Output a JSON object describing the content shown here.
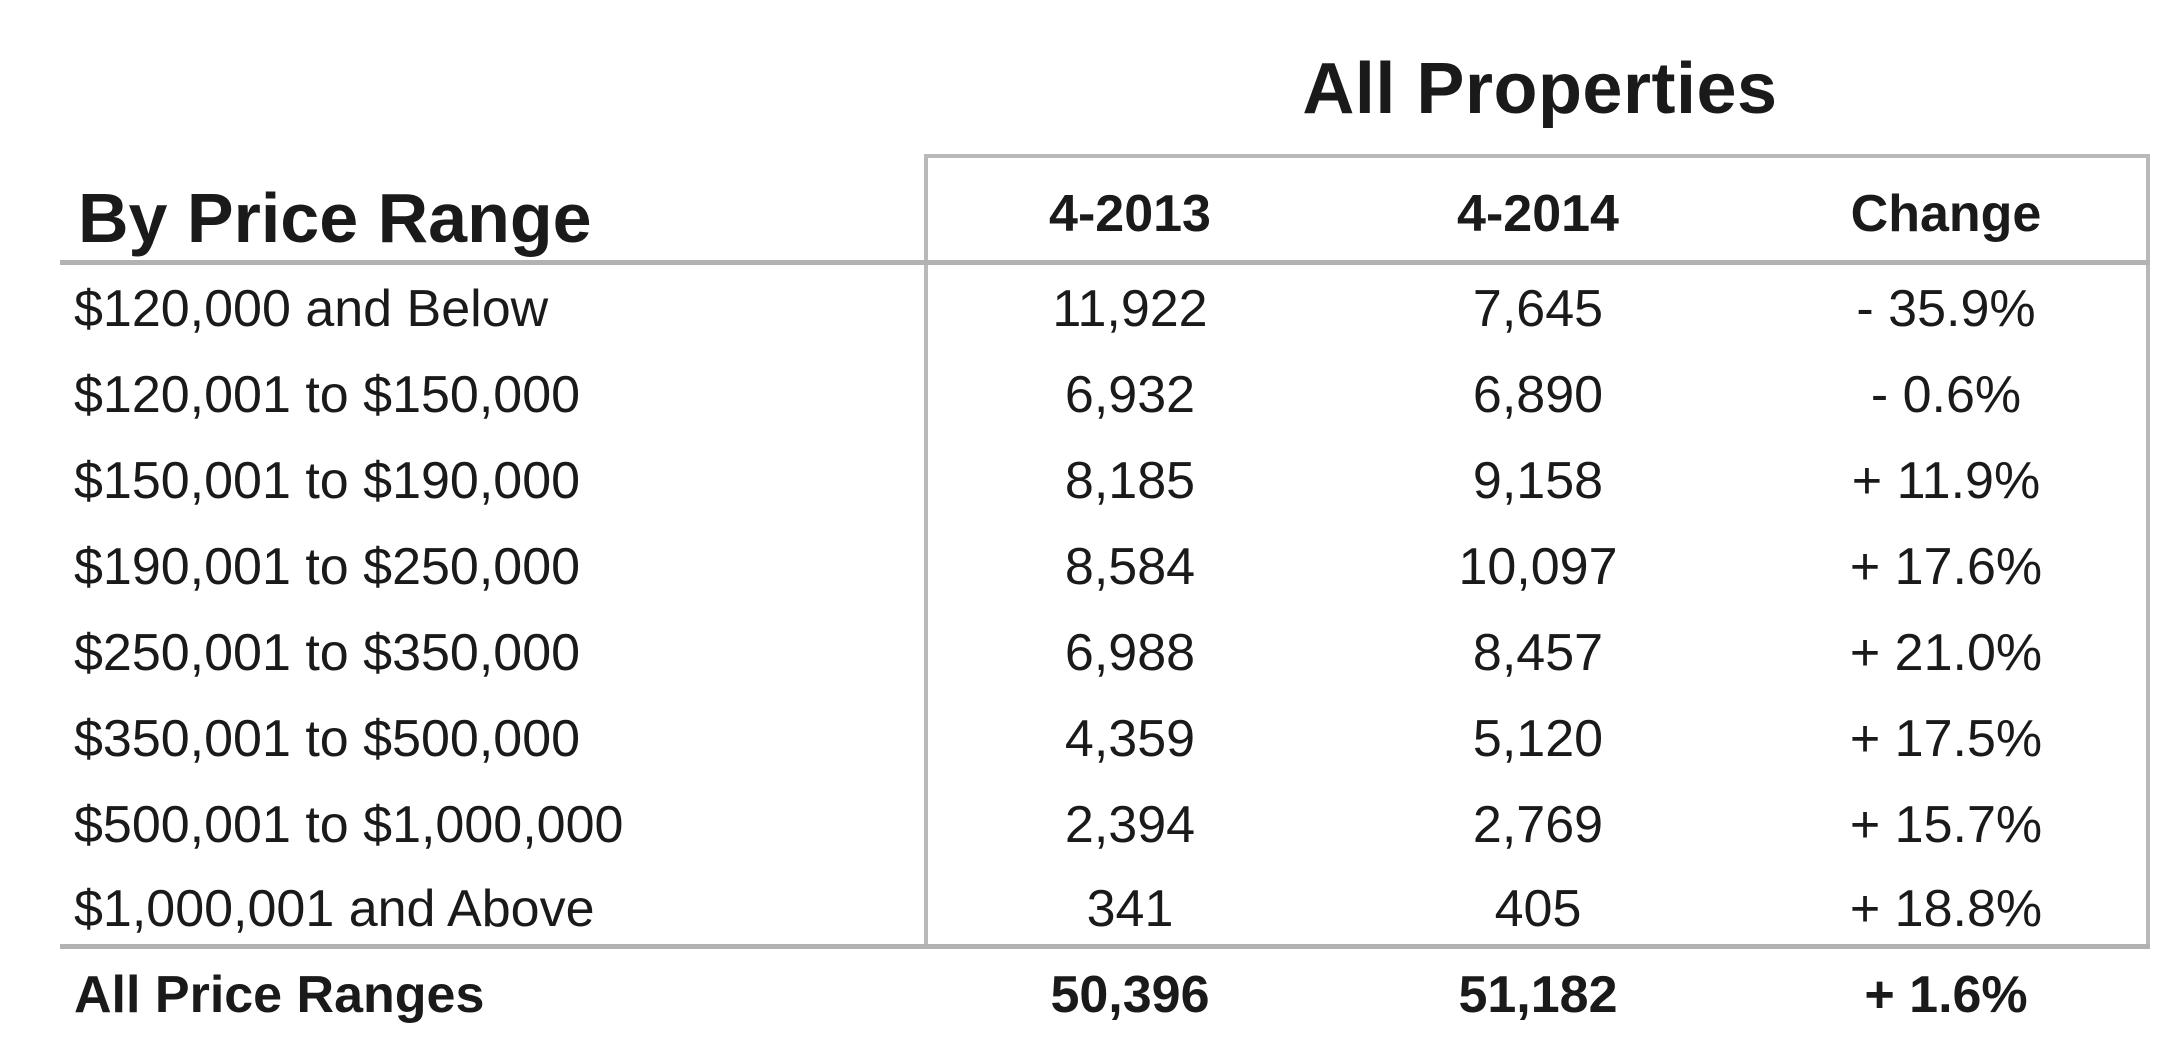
{
  "header": {
    "group_title": "All Properties",
    "section_title": "By Price Range",
    "columns": [
      "4-2013",
      "4-2014",
      "Change"
    ]
  },
  "rows": [
    {
      "label": "$120,000 and Below",
      "v2013": "11,922",
      "v2014": "7,645",
      "change": "- 35.9%"
    },
    {
      "label": "$120,001 to $150,000",
      "v2013": "6,932",
      "v2014": "6,890",
      "change": "- 0.6%"
    },
    {
      "label": "$150,001 to $190,000",
      "v2013": "8,185",
      "v2014": "9,158",
      "change": "+ 11.9%"
    },
    {
      "label": "$190,001 to $250,000",
      "v2013": "8,584",
      "v2014": "10,097",
      "change": "+ 17.6%"
    },
    {
      "label": "$250,001 to $350,000",
      "v2013": "6,988",
      "v2014": "8,457",
      "change": "+ 21.0%"
    },
    {
      "label": "$350,001 to $500,000",
      "v2013": "4,359",
      "v2014": "5,120",
      "change": "+ 17.5%"
    },
    {
      "label": "$500,001 to $1,000,000",
      "v2013": "2,394",
      "v2014": "2,769",
      "change": "+ 15.7%"
    },
    {
      "label": "$1,000,001 and Above",
      "v2013": "341",
      "v2014": "405",
      "change": "+ 18.8%"
    }
  ],
  "total": {
    "label": "All Price Ranges",
    "v2013": "50,396",
    "v2014": "51,182",
    "change": "+ 1.6%"
  }
}
